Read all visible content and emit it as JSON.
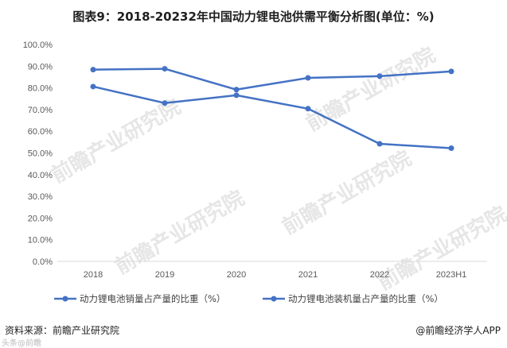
{
  "title": "图表9：2018-20232年中国动力锂电池供需平衡分析图(单位：%)",
  "source": "资料来源：前瞻产业研究院",
  "credit": "@前瞻经济学人APP",
  "watermark": "前瞻产业研究院",
  "corner_watermark": "头条@前瞻",
  "chart_data": {
    "type": "line",
    "categories": [
      "2018",
      "2019",
      "2020",
      "2021",
      "2022",
      "2023H1"
    ],
    "ylim": [
      0,
      100
    ],
    "ytick_labels": [
      "0.0%",
      "10.0%",
      "20.0%",
      "30.0%",
      "40.0%",
      "50.0%",
      "60.0%",
      "70.0%",
      "80.0%",
      "90.0%",
      "100.0%"
    ],
    "grid": false,
    "legend_position": "bottom",
    "series": [
      {
        "name": "动力锂电池销量占产量的比重（%）",
        "values": [
          88.4,
          88.8,
          79.2,
          84.6,
          85.4,
          87.6
        ],
        "color": "#4472c4"
      },
      {
        "name": "动力锂电池装机量占产量的比重（%）",
        "values": [
          80.6,
          73.0,
          76.6,
          70.4,
          54.2,
          52.2
        ],
        "color": "#4472c4"
      }
    ]
  }
}
